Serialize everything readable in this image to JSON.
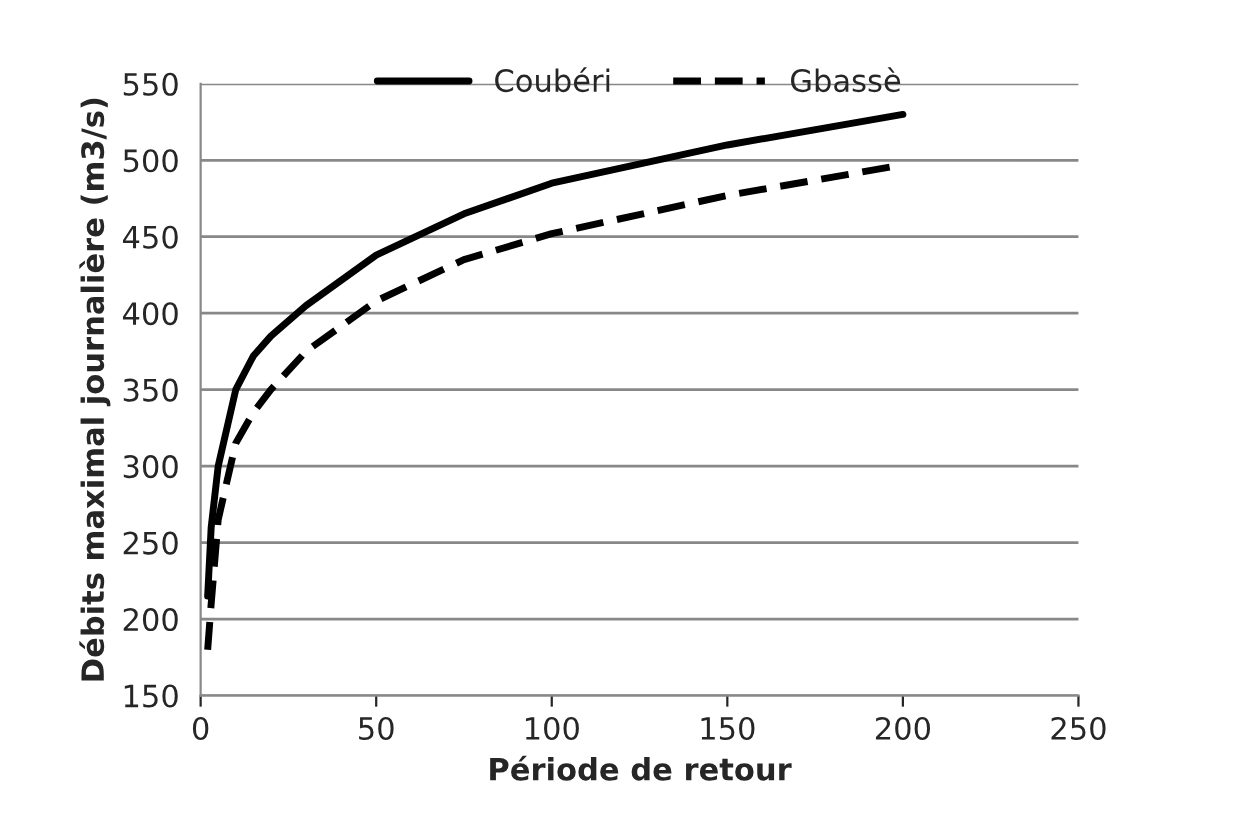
{
  "chart_data": {
    "type": "line",
    "xlabel": "Période de retour",
    "ylabel": "Débits maximal journalière (m3/s)",
    "xlim": [
      0,
      250
    ],
    "xticks": [
      0,
      50,
      100,
      150,
      200,
      250
    ],
    "ylim": [
      150,
      550
    ],
    "yticks": [
      150,
      200,
      250,
      300,
      350,
      400,
      450,
      500,
      550
    ],
    "grid": "y",
    "legend": "top",
    "marker": "none",
    "series": [
      {
        "name": "Coubéri",
        "color": "#000000",
        "line_style": "solid",
        "x": [
          2,
          3,
          5,
          10,
          15,
          20,
          30,
          50,
          75,
          100,
          150,
          200
        ],
        "values": [
          215,
          260,
          300,
          350,
          372,
          385,
          405,
          438,
          465,
          485,
          510,
          530
        ]
      },
      {
        "name": "Gbassè",
        "color": "#000000",
        "line_style": "dashed",
        "x": [
          2,
          3,
          5,
          10,
          15,
          20,
          30,
          50,
          75,
          100,
          150,
          200
        ],
        "values": [
          180,
          210,
          265,
          315,
          335,
          350,
          375,
          408,
          435,
          452,
          477,
          497
        ]
      }
    ]
  }
}
